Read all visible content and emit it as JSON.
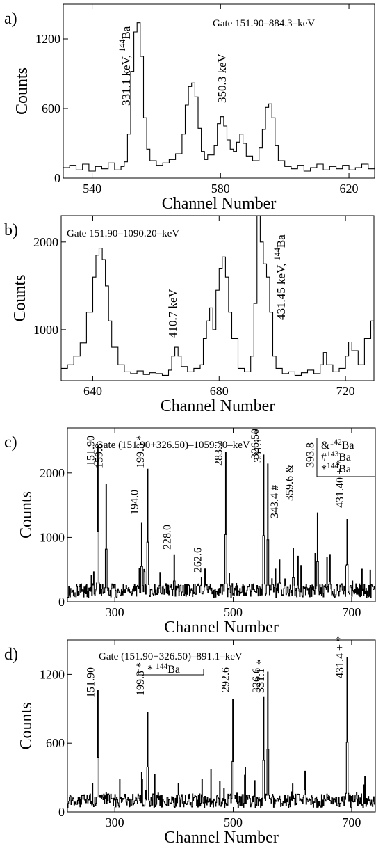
{
  "chart_data": [
    {
      "type": "line",
      "panel_label": "a)",
      "gate_text": "Gate 151.90–884.3–keV",
      "xlabel": "Channel Number",
      "ylabel": "Counts",
      "xlim": [
        531,
        628
      ],
      "ylim": [
        0,
        1500
      ],
      "xticks": [
        540,
        580,
        620
      ],
      "yticks": [
        0,
        600,
        1200
      ],
      "x": [
        531,
        533,
        535,
        537,
        539,
        541,
        543,
        545,
        547,
        549,
        550,
        551,
        552,
        553,
        554,
        555,
        556,
        557,
        558,
        560,
        562,
        564,
        566,
        568,
        569,
        570,
        571,
        572,
        573,
        574,
        575,
        576,
        578,
        579,
        580,
        581,
        582,
        583,
        584,
        585,
        586,
        587,
        588,
        590,
        592,
        593,
        594,
        595,
        596,
        597,
        598,
        600,
        602,
        604,
        606,
        608,
        610,
        612,
        614,
        616,
        618,
        620,
        622,
        624,
        626,
        628
      ],
      "y": [
        90,
        110,
        70,
        120,
        60,
        100,
        80,
        130,
        70,
        100,
        140,
        380,
        920,
        1260,
        1340,
        1050,
        520,
        250,
        150,
        110,
        130,
        160,
        210,
        380,
        630,
        790,
        820,
        700,
        430,
        230,
        160,
        200,
        280,
        470,
        530,
        450,
        330,
        250,
        230,
        310,
        380,
        300,
        190,
        150,
        260,
        420,
        610,
        640,
        520,
        280,
        150,
        100,
        80,
        110,
        60,
        90,
        120,
        70,
        100,
        80,
        110,
        70,
        90,
        120,
        80,
        100
      ],
      "annotations": [
        "331.1 keV, 144Ba",
        "350.3 keV"
      ]
    },
    {
      "type": "line",
      "panel_label": "b)",
      "gate_text": "Gate  151.90–1090.20–keV",
      "xlabel": "Channel Number",
      "ylabel": "Counts",
      "xlim": [
        630,
        729
      ],
      "ylim": [
        420,
        2300
      ],
      "xticks": [
        640,
        680,
        720
      ],
      "yticks": [
        1000,
        2000
      ],
      "x": [
        630,
        632,
        634,
        636,
        638,
        640,
        641,
        642,
        643,
        644,
        645,
        646,
        648,
        650,
        652,
        654,
        656,
        658,
        660,
        662,
        664,
        665,
        666,
        667,
        668,
        670,
        672,
        674,
        675,
        676,
        677,
        678,
        679,
        680,
        681,
        682,
        683,
        684,
        686,
        688,
        690,
        691,
        692,
        693,
        694,
        695,
        696,
        697,
        698,
        700,
        702,
        704,
        706,
        708,
        710,
        712,
        713,
        714,
        716,
        718,
        720,
        721,
        722,
        724,
        726,
        728,
        729
      ],
      "y": [
        560,
        600,
        700,
        850,
        1200,
        1600,
        1850,
        1930,
        1800,
        1500,
        1100,
        800,
        600,
        520,
        500,
        530,
        490,
        510,
        500,
        480,
        540,
        700,
        800,
        700,
        580,
        520,
        560,
        600,
        900,
        1100,
        1250,
        1000,
        1450,
        1700,
        1830,
        1600,
        1200,
        900,
        560,
        520,
        700,
        1300,
        2300,
        2000,
        1750,
        1600,
        1200,
        700,
        560,
        500,
        520,
        480,
        510,
        540,
        500,
        600,
        740,
        600,
        520,
        560,
        700,
        860,
        760,
        600,
        900,
        1100,
        1000
      ],
      "annotations": [
        "410.7 keV",
        "431.45 keV, 144Ba"
      ]
    },
    {
      "type": "line",
      "panel_label": "c)",
      "gate_text": "Gate (151.90+326.50)–1059.70–keV",
      "xlabel": "Channel Number",
      "ylabel": "Counts",
      "xlim": [
        220,
        740
      ],
      "ylim": [
        0,
        2700
      ],
      "xticks": [
        300,
        500,
        700
      ],
      "yticks": [
        0,
        1000,
        2000
      ],
      "legend": [
        "&142Ba",
        "#143Ba",
        "*144Ba"
      ],
      "peaks": [
        {
          "x": 271,
          "height": 2420,
          "label": "151.90"
        },
        {
          "x": 285,
          "height": 1820,
          "label": "159.8"
        },
        {
          "x": 345,
          "height": 1220,
          "label": "194.0"
        },
        {
          "x": 355,
          "height": 2060,
          "label": "199.3 *"
        },
        {
          "x": 400,
          "height": 720,
          "label": "228.0"
        },
        {
          "x": 452,
          "height": 510,
          "label": "262.6"
        },
        {
          "x": 487,
          "height": 2320,
          "label": "283.2"
        },
        {
          "x": 551,
          "height": 2280,
          "label": "326.50"
        },
        {
          "x": 558,
          "height": 2140,
          "label": "331.1 *"
        },
        {
          "x": 578,
          "height": 650,
          "label": "343.4 #"
        },
        {
          "x": 601,
          "height": 830,
          "label": "359.6 &"
        },
        {
          "x": 642,
          "height": 1380,
          "label": "393.8"
        },
        {
          "x": 692,
          "height": 1280,
          "label": "431.40 + *"
        }
      ]
    },
    {
      "type": "line",
      "panel_label": "d)",
      "gate_text": "Gate (151.90+326.50)–891.1–keV",
      "xlabel": "Channel Number",
      "ylabel": "Counts",
      "xlim": [
        220,
        740
      ],
      "ylim": [
        0,
        1500
      ],
      "xticks": [
        300,
        500,
        700
      ],
      "yticks": [
        0,
        600,
        1200
      ],
      "legend": [
        "* 144Ba"
      ],
      "peaks": [
        {
          "x": 271,
          "height": 1060,
          "label": "151.90"
        },
        {
          "x": 355,
          "height": 870,
          "label": "199.3 *"
        },
        {
          "x": 499,
          "height": 980,
          "label": "292.6"
        },
        {
          "x": 551,
          "height": 1000,
          "label": "326.6"
        },
        {
          "x": 558,
          "height": 1220,
          "label": "331.1 *"
        },
        {
          "x": 692,
          "height": 1350,
          "label": "431.4 + *"
        }
      ]
    }
  ]
}
